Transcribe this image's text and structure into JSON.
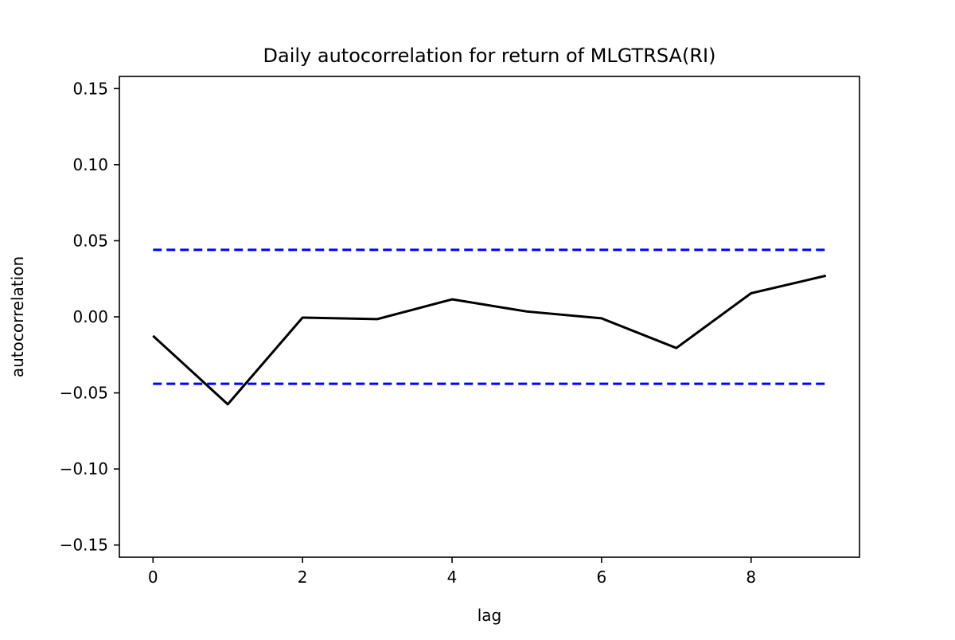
{
  "chart_data": {
    "type": "line",
    "title": "Daily autocorrelation for  return of MLGTRSA(RI)",
    "xlabel": "lag",
    "ylabel": "autocorrelation",
    "xlim": [
      -0.45,
      9.45
    ],
    "ylim": [
      -0.158,
      0.158
    ],
    "x_ticks": [
      0,
      2,
      4,
      6,
      8
    ],
    "y_ticks": [
      0.15,
      0.1,
      0.05,
      0.0,
      -0.05,
      -0.1,
      -0.15
    ],
    "x_tick_labels": [
      "0",
      "2",
      "4",
      "6",
      "8"
    ],
    "y_tick_labels": [
      "0.15",
      "0.10",
      "0.05",
      "0.00",
      "−0.05",
      "−0.10",
      "−0.15"
    ],
    "grid": false,
    "series": [
      {
        "style": "solid",
        "color": "#000000",
        "x": [
          0,
          1,
          2,
          3,
          4,
          5,
          6,
          7,
          8,
          9
        ],
        "y": [
          -0.0125,
          -0.0575,
          -0.0005,
          -0.0015,
          0.0115,
          0.0035,
          -0.001,
          -0.0205,
          0.0155,
          0.027
        ]
      },
      {
        "style": "dashed",
        "color": "#0000ff",
        "x": [
          0,
          9
        ],
        "y": [
          0.044,
          0.044
        ]
      },
      {
        "style": "dashed",
        "color": "#0000ff",
        "x": [
          0,
          9
        ],
        "y": [
          -0.044,
          -0.044
        ]
      }
    ]
  }
}
